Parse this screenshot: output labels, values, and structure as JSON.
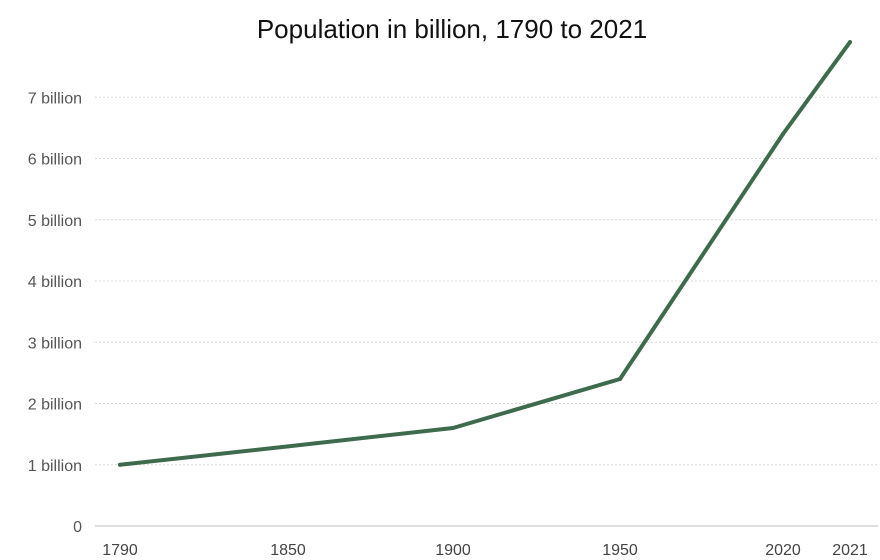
{
  "chart_data": {
    "type": "line",
    "title": "Population in billion, 1790 to 2021",
    "xlabel": "",
    "ylabel": "",
    "x": [
      1790,
      1850,
      1900,
      1950,
      2020,
      2021
    ],
    "x_tick_labels": [
      "1790",
      "1850",
      "1900",
      "1950",
      "2020",
      "2021"
    ],
    "series": [
      {
        "values": [
          1.0,
          1.3,
          1.6,
          2.4,
          6.4,
          7.9
        ],
        "color": "#3d6b4c"
      }
    ],
    "y_ticks": [
      0,
      1,
      2,
      3,
      4,
      5,
      6,
      7
    ],
    "y_tick_labels": [
      "0",
      "1 billion",
      "2 billion",
      "3 billion",
      "4 billion",
      "5 billion",
      "6 billion",
      "7 billion"
    ],
    "ylim": [
      0,
      8
    ],
    "grid": true,
    "legend": "none"
  }
}
